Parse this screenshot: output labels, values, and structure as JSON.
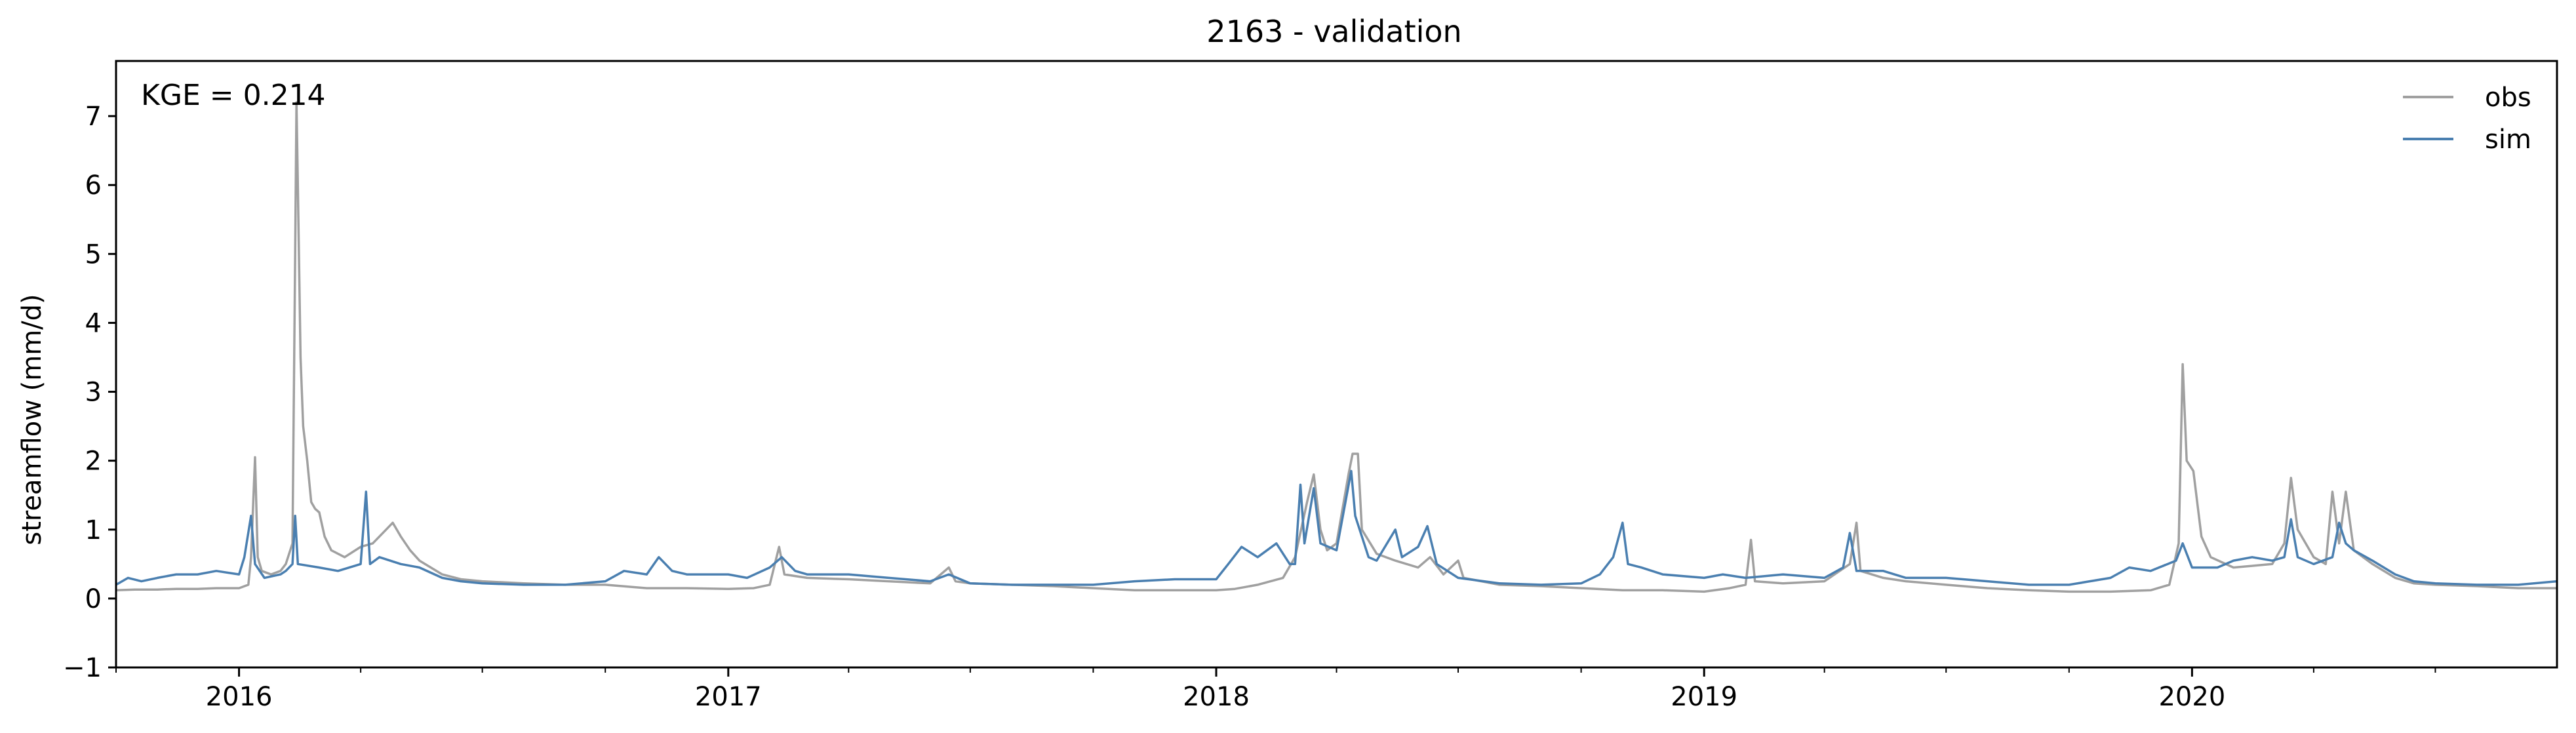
{
  "chart_data": {
    "type": "line",
    "title": "2163 - validation",
    "xlabel": "",
    "ylabel": "streamflow (mm/d)",
    "annotation": "KGE = 0.214",
    "xlim": [
      "2015-10-01",
      "2020-09-30"
    ],
    "ylim": [
      -1,
      7.8
    ],
    "yticks": [
      -1,
      0,
      1,
      2,
      3,
      4,
      5,
      6,
      7
    ],
    "xtick_labels": [
      {
        "date": "2016-01-01",
        "label": "2016"
      },
      {
        "date": "2017-01-01",
        "label": "2017"
      },
      {
        "date": "2018-01-01",
        "label": "2018"
      },
      {
        "date": "2019-01-01",
        "label": "2019"
      },
      {
        "date": "2020-01-01",
        "label": "2020"
      }
    ],
    "legend_position": "top-right",
    "grid": false,
    "series": [
      {
        "name": "obs",
        "color": "#a0a0a0",
        "points": [
          [
            "2015-10-01",
            0.12
          ],
          [
            "2015-10-15",
            0.13
          ],
          [
            "2015-11-01",
            0.13
          ],
          [
            "2015-11-15",
            0.14
          ],
          [
            "2015-12-01",
            0.14
          ],
          [
            "2015-12-15",
            0.15
          ],
          [
            "2016-01-01",
            0.15
          ],
          [
            "2016-01-08",
            0.2
          ],
          [
            "2016-01-10",
            0.6
          ],
          [
            "2016-01-13",
            2.05
          ],
          [
            "2016-01-15",
            0.6
          ],
          [
            "2016-01-18",
            0.4
          ],
          [
            "2016-01-25",
            0.35
          ],
          [
            "2016-02-01",
            0.4
          ],
          [
            "2016-02-05",
            0.5
          ],
          [
            "2016-02-10",
            0.8
          ],
          [
            "2016-02-12",
            5.0
          ],
          [
            "2016-02-13",
            7.2
          ],
          [
            "2016-02-14",
            6.0
          ],
          [
            "2016-02-16",
            3.5
          ],
          [
            "2016-02-18",
            2.5
          ],
          [
            "2016-02-21",
            2.0
          ],
          [
            "2016-02-24",
            1.4
          ],
          [
            "2016-02-27",
            1.3
          ],
          [
            "2016-03-01",
            1.25
          ],
          [
            "2016-03-05",
            0.9
          ],
          [
            "2016-03-10",
            0.7
          ],
          [
            "2016-03-20",
            0.6
          ],
          [
            "2016-04-01",
            0.75
          ],
          [
            "2016-04-10",
            0.8
          ],
          [
            "2016-04-20",
            1.0
          ],
          [
            "2016-04-25",
            1.1
          ],
          [
            "2016-05-01",
            0.9
          ],
          [
            "2016-05-08",
            0.7
          ],
          [
            "2016-05-15",
            0.55
          ],
          [
            "2016-06-01",
            0.35
          ],
          [
            "2016-06-15",
            0.28
          ],
          [
            "2016-07-01",
            0.25
          ],
          [
            "2016-08-01",
            0.22
          ],
          [
            "2016-09-01",
            0.2
          ],
          [
            "2016-10-01",
            0.2
          ],
          [
            "2016-11-01",
            0.15
          ],
          [
            "2016-12-01",
            0.15
          ],
          [
            "2017-01-01",
            0.14
          ],
          [
            "2017-01-20",
            0.15
          ],
          [
            "2017-02-01",
            0.2
          ],
          [
            "2017-02-08",
            0.75
          ],
          [
            "2017-02-12",
            0.35
          ],
          [
            "2017-03-01",
            0.3
          ],
          [
            "2017-04-01",
            0.28
          ],
          [
            "2017-05-01",
            0.25
          ],
          [
            "2017-06-01",
            0.22
          ],
          [
            "2017-06-15",
            0.45
          ],
          [
            "2017-06-20",
            0.25
          ],
          [
            "2017-07-01",
            0.22
          ],
          [
            "2017-08-01",
            0.2
          ],
          [
            "2017-09-01",
            0.18
          ],
          [
            "2017-10-01",
            0.15
          ],
          [
            "2017-11-01",
            0.12
          ],
          [
            "2017-12-01",
            0.12
          ],
          [
            "2018-01-01",
            0.12
          ],
          [
            "2018-01-15",
            0.14
          ],
          [
            "2018-02-01",
            0.2
          ],
          [
            "2018-02-20",
            0.3
          ],
          [
            "2018-03-01",
            0.6
          ],
          [
            "2018-03-10",
            1.4
          ],
          [
            "2018-03-15",
            1.8
          ],
          [
            "2018-03-20",
            1.0
          ],
          [
            "2018-03-25",
            0.7
          ],
          [
            "2018-04-01",
            0.8
          ],
          [
            "2018-04-10",
            1.8
          ],
          [
            "2018-04-13",
            2.1
          ],
          [
            "2018-04-17",
            2.1
          ],
          [
            "2018-04-20",
            1.0
          ],
          [
            "2018-05-01",
            0.65
          ],
          [
            "2018-05-15",
            0.55
          ],
          [
            "2018-06-01",
            0.45
          ],
          [
            "2018-06-10",
            0.6
          ],
          [
            "2018-06-20",
            0.35
          ],
          [
            "2018-07-01",
            0.55
          ],
          [
            "2018-07-05",
            0.3
          ],
          [
            "2018-08-01",
            0.2
          ],
          [
            "2018-09-01",
            0.18
          ],
          [
            "2018-10-01",
            0.15
          ],
          [
            "2018-11-01",
            0.12
          ],
          [
            "2018-12-01",
            0.12
          ],
          [
            "2019-01-01",
            0.1
          ],
          [
            "2019-01-20",
            0.15
          ],
          [
            "2019-02-01",
            0.2
          ],
          [
            "2019-02-05",
            0.85
          ],
          [
            "2019-02-08",
            0.25
          ],
          [
            "2019-03-01",
            0.22
          ],
          [
            "2019-04-01",
            0.25
          ],
          [
            "2019-04-20",
            0.5
          ],
          [
            "2019-04-25",
            1.1
          ],
          [
            "2019-04-28",
            0.4
          ],
          [
            "2019-05-15",
            0.3
          ],
          [
            "2019-06-01",
            0.25
          ],
          [
            "2019-07-01",
            0.2
          ],
          [
            "2019-08-01",
            0.15
          ],
          [
            "2019-09-01",
            0.12
          ],
          [
            "2019-10-01",
            0.1
          ],
          [
            "2019-11-01",
            0.1
          ],
          [
            "2019-12-01",
            0.12
          ],
          [
            "2019-12-15",
            0.2
          ],
          [
            "2019-12-22",
            0.8
          ],
          [
            "2019-12-25",
            3.4
          ],
          [
            "2019-12-28",
            2.0
          ],
          [
            "2020-01-02",
            1.85
          ],
          [
            "2020-01-08",
            0.9
          ],
          [
            "2020-01-15",
            0.6
          ],
          [
            "2020-02-01",
            0.45
          ],
          [
            "2020-03-01",
            0.5
          ],
          [
            "2020-03-10",
            0.8
          ],
          [
            "2020-03-15",
            1.75
          ],
          [
            "2020-03-20",
            1.0
          ],
          [
            "2020-04-01",
            0.6
          ],
          [
            "2020-04-10",
            0.5
          ],
          [
            "2020-04-15",
            1.55
          ],
          [
            "2020-04-20",
            0.8
          ],
          [
            "2020-04-25",
            1.55
          ],
          [
            "2020-05-01",
            0.7
          ],
          [
            "2020-05-15",
            0.5
          ],
          [
            "2020-06-01",
            0.3
          ],
          [
            "2020-06-15",
            0.22
          ],
          [
            "2020-07-01",
            0.2
          ],
          [
            "2020-08-01",
            0.18
          ],
          [
            "2020-09-01",
            0.15
          ],
          [
            "2020-09-30",
            0.15
          ]
        ]
      },
      {
        "name": "sim",
        "color": "#4a7fb0",
        "points": [
          [
            "2015-10-01",
            0.2
          ],
          [
            "2015-10-10",
            0.3
          ],
          [
            "2015-10-20",
            0.25
          ],
          [
            "2015-11-01",
            0.3
          ],
          [
            "2015-11-15",
            0.35
          ],
          [
            "2015-12-01",
            0.35
          ],
          [
            "2015-12-15",
            0.4
          ],
          [
            "2016-01-01",
            0.35
          ],
          [
            "2016-01-05",
            0.6
          ],
          [
            "2016-01-10",
            1.2
          ],
          [
            "2016-01-13",
            0.5
          ],
          [
            "2016-01-20",
            0.3
          ],
          [
            "2016-02-01",
            0.35
          ],
          [
            "2016-02-05",
            0.4
          ],
          [
            "2016-02-10",
            0.5
          ],
          [
            "2016-02-12",
            1.2
          ],
          [
            "2016-02-14",
            0.5
          ],
          [
            "2016-03-01",
            0.45
          ],
          [
            "2016-03-15",
            0.4
          ],
          [
            "2016-04-01",
            0.5
          ],
          [
            "2016-04-05",
            1.55
          ],
          [
            "2016-04-08",
            0.5
          ],
          [
            "2016-04-15",
            0.6
          ],
          [
            "2016-05-01",
            0.5
          ],
          [
            "2016-05-15",
            0.45
          ],
          [
            "2016-06-01",
            0.3
          ],
          [
            "2016-06-15",
            0.25
          ],
          [
            "2016-07-01",
            0.22
          ],
          [
            "2016-08-01",
            0.2
          ],
          [
            "2016-09-01",
            0.2
          ],
          [
            "2016-10-01",
            0.25
          ],
          [
            "2016-10-15",
            0.4
          ],
          [
            "2016-11-01",
            0.35
          ],
          [
            "2016-11-10",
            0.6
          ],
          [
            "2016-11-20",
            0.4
          ],
          [
            "2016-12-01",
            0.35
          ],
          [
            "2017-01-01",
            0.35
          ],
          [
            "2017-01-15",
            0.3
          ],
          [
            "2017-02-01",
            0.45
          ],
          [
            "2017-02-10",
            0.6
          ],
          [
            "2017-02-20",
            0.4
          ],
          [
            "2017-03-01",
            0.35
          ],
          [
            "2017-04-01",
            0.35
          ],
          [
            "2017-05-01",
            0.3
          ],
          [
            "2017-06-01",
            0.25
          ],
          [
            "2017-06-15",
            0.35
          ],
          [
            "2017-07-01",
            0.22
          ],
          [
            "2017-08-01",
            0.2
          ],
          [
            "2017-09-01",
            0.2
          ],
          [
            "2017-10-01",
            0.2
          ],
          [
            "2017-11-01",
            0.25
          ],
          [
            "2017-12-01",
            0.28
          ],
          [
            "2018-01-01",
            0.28
          ],
          [
            "2018-01-10",
            0.5
          ],
          [
            "2018-01-20",
            0.75
          ],
          [
            "2018-02-01",
            0.6
          ],
          [
            "2018-02-15",
            0.8
          ],
          [
            "2018-02-25",
            0.5
          ],
          [
            "2018-03-01",
            0.5
          ],
          [
            "2018-03-05",
            1.65
          ],
          [
            "2018-03-08",
            0.8
          ],
          [
            "2018-03-15",
            1.6
          ],
          [
            "2018-03-20",
            0.8
          ],
          [
            "2018-04-01",
            0.7
          ],
          [
            "2018-04-12",
            1.85
          ],
          [
            "2018-04-15",
            1.2
          ],
          [
            "2018-04-25",
            0.6
          ],
          [
            "2018-05-01",
            0.55
          ],
          [
            "2018-05-15",
            1.0
          ],
          [
            "2018-05-20",
            0.6
          ],
          [
            "2018-06-01",
            0.75
          ],
          [
            "2018-06-08",
            1.05
          ],
          [
            "2018-06-15",
            0.5
          ],
          [
            "2018-07-01",
            0.3
          ],
          [
            "2018-08-01",
            0.22
          ],
          [
            "2018-09-01",
            0.2
          ],
          [
            "2018-10-01",
            0.22
          ],
          [
            "2018-10-15",
            0.35
          ],
          [
            "2018-10-25",
            0.6
          ],
          [
            "2018-11-01",
            1.1
          ],
          [
            "2018-11-05",
            0.5
          ],
          [
            "2018-11-15",
            0.45
          ],
          [
            "2018-12-01",
            0.35
          ],
          [
            "2019-01-01",
            0.3
          ],
          [
            "2019-01-15",
            0.35
          ],
          [
            "2019-02-01",
            0.3
          ],
          [
            "2019-03-01",
            0.35
          ],
          [
            "2019-04-01",
            0.3
          ],
          [
            "2019-04-15",
            0.45
          ],
          [
            "2019-04-20",
            0.95
          ],
          [
            "2019-04-25",
            0.4
          ],
          [
            "2019-05-15",
            0.4
          ],
          [
            "2019-06-01",
            0.3
          ],
          [
            "2019-07-01",
            0.3
          ],
          [
            "2019-08-01",
            0.25
          ],
          [
            "2019-09-01",
            0.2
          ],
          [
            "2019-10-01",
            0.2
          ],
          [
            "2019-11-01",
            0.3
          ],
          [
            "2019-11-15",
            0.45
          ],
          [
            "2019-12-01",
            0.4
          ],
          [
            "2019-12-20",
            0.55
          ],
          [
            "2019-12-25",
            0.8
          ],
          [
            "2020-01-01",
            0.45
          ],
          [
            "2020-01-20",
            0.45
          ],
          [
            "2020-02-01",
            0.55
          ],
          [
            "2020-02-15",
            0.6
          ],
          [
            "2020-03-01",
            0.55
          ],
          [
            "2020-03-10",
            0.6
          ],
          [
            "2020-03-15",
            1.15
          ],
          [
            "2020-03-20",
            0.6
          ],
          [
            "2020-04-01",
            0.5
          ],
          [
            "2020-04-15",
            0.6
          ],
          [
            "2020-04-20",
            1.1
          ],
          [
            "2020-04-25",
            0.8
          ],
          [
            "2020-05-01",
            0.7
          ],
          [
            "2020-05-15",
            0.55
          ],
          [
            "2020-06-01",
            0.35
          ],
          [
            "2020-06-15",
            0.25
          ],
          [
            "2020-07-01",
            0.22
          ],
          [
            "2020-08-01",
            0.2
          ],
          [
            "2020-09-01",
            0.2
          ],
          [
            "2020-09-30",
            0.25
          ]
        ]
      }
    ]
  }
}
